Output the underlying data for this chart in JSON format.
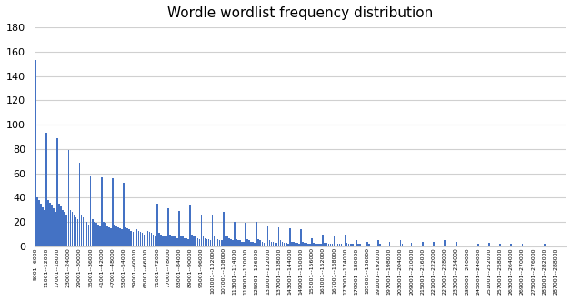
{
  "title": "Wordle wordlist frequency distribution",
  "bar_color": "#4472C4",
  "ylim": [
    0,
    180
  ],
  "yticks": [
    0,
    20,
    40,
    60,
    80,
    100,
    120,
    140,
    160,
    180
  ],
  "tick_labels": [
    "5001--6000",
    "11001--12000",
    "17001--18000",
    "23001--24000",
    "29001--30000",
    "35001--36000",
    "41001--42000",
    "47001--48000",
    "53001--54000",
    "59001--60000",
    "65001--66000",
    "71001--72000",
    "77001--78000",
    "83001--84000",
    "89001--90000",
    "95001--96000",
    "101001--102000",
    "107001--108000",
    "113001--114000",
    "119001--120000",
    "125001--126000",
    "131001--132000",
    "137001--138000",
    "143001--144000",
    "149001--150000",
    "155001--156000",
    "161001--162000",
    "167001--168000",
    "173001--174000",
    "179001--180000",
    "185001--186000",
    "191001--192000",
    "197001--198000",
    "203001--204000",
    "209001--210000",
    "215001--216000",
    "221001--222000",
    "227001--228000",
    "233001--234000",
    "239001--240000",
    "245001--246000",
    "251001--252000",
    "257001--258000",
    "263001--264000",
    "269001--270000",
    "275001--276000",
    "281001--282000",
    "287001--288000"
  ],
  "values": [
    153,
    40,
    38,
    35,
    32,
    30,
    93,
    38,
    36,
    34,
    31,
    28,
    89,
    35,
    33,
    30,
    28,
    26,
    79,
    30,
    28,
    26,
    24,
    22,
    69,
    26,
    24,
    22,
    20,
    18,
    58,
    22,
    20,
    19,
    18,
    17,
    57,
    20,
    19,
    17,
    16,
    15,
    56,
    18,
    17,
    16,
    15,
    14,
    52,
    16,
    15,
    14,
    13,
    12,
    46,
    14,
    13,
    12,
    11,
    10,
    42,
    13,
    12,
    11,
    10,
    9,
    35,
    11,
    10,
    9,
    9,
    8,
    31,
    10,
    9,
    8,
    8,
    7,
    29,
    9,
    8,
    7,
    7,
    6,
    34,
    10,
    9,
    8,
    7,
    6,
    26,
    8,
    7,
    6,
    6,
    5,
    26,
    8,
    7,
    6,
    5,
    5,
    28,
    9,
    8,
    7,
    6,
    5,
    20,
    6,
    5,
    5,
    4,
    4,
    19,
    6,
    5,
    4,
    4,
    3,
    20,
    6,
    5,
    4,
    3,
    3,
    17,
    5,
    4,
    4,
    3,
    3,
    16,
    5,
    4,
    3,
    3,
    2,
    15,
    4,
    4,
    3,
    3,
    2,
    14,
    4,
    3,
    3,
    2,
    2,
    7,
    3,
    2,
    2,
    2,
    2,
    10,
    3,
    3,
    2,
    2,
    2,
    9,
    3,
    2,
    2,
    2,
    1,
    10,
    3,
    2,
    2,
    2,
    1,
    5,
    2,
    2,
    1,
    1,
    1,
    4,
    2,
    1,
    1,
    1,
    1,
    5,
    2,
    1,
    1,
    1,
    1,
    4,
    1,
    1,
    1,
    1,
    1,
    5,
    2,
    1,
    1,
    1,
    1,
    3,
    1,
    1,
    1,
    1,
    1,
    4,
    1,
    1,
    1,
    1,
    1,
    4,
    1,
    1,
    1,
    1,
    1,
    5,
    1,
    1,
    1,
    1,
    1,
    4,
    1,
    1,
    1,
    1,
    1,
    3,
    1,
    1,
    1,
    1,
    0,
    2,
    1,
    1,
    1,
    0,
    0,
    3,
    1,
    1,
    0,
    0,
    0,
    2,
    1,
    0,
    0,
    0,
    0,
    2,
    1,
    0,
    0,
    0,
    0,
    2,
    1,
    0,
    0,
    0,
    0,
    1,
    0,
    0,
    0,
    0,
    0,
    2,
    1,
    0,
    0,
    0,
    0,
    1,
    0,
    0,
    0,
    0,
    0
  ],
  "bins_per_label": 6,
  "num_labels": 48
}
